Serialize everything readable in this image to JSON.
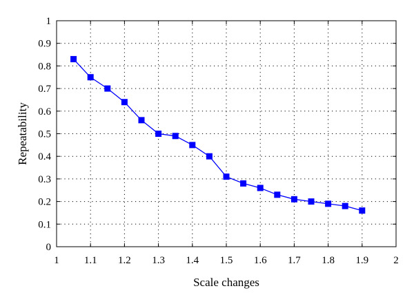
{
  "chart_data": {
    "type": "line",
    "xlabel": "Scale changes",
    "ylabel": "Repeatability",
    "xlim": [
      1,
      2
    ],
    "ylim": [
      0,
      1
    ],
    "xticks": [
      1,
      1.1,
      1.2,
      1.3,
      1.4,
      1.5,
      1.6,
      1.7,
      1.8,
      1.9,
      2
    ],
    "xtick_labels": [
      "1",
      "1.1",
      "1.2",
      "1.3",
      "1.4",
      "1.5",
      "1.6",
      "1.7",
      "1.8",
      "1.9",
      "2"
    ],
    "yticks": [
      0,
      0.1,
      0.2,
      0.3,
      0.4,
      0.5,
      0.6,
      0.7,
      0.8,
      0.9,
      1
    ],
    "ytick_labels": [
      "0",
      "0.1",
      "0.2",
      "0.3",
      "0.4",
      "0.5",
      "0.6",
      "0.7",
      "0.8",
      "0.9",
      "1"
    ],
    "grid": true,
    "grid_style": "dotted",
    "series": [
      {
        "color": "#0000ff",
        "marker": "square",
        "x": [
          1.05,
          1.1,
          1.15,
          1.2,
          1.25,
          1.3,
          1.35,
          1.4,
          1.45,
          1.5,
          1.55,
          1.6,
          1.65,
          1.7,
          1.75,
          1.8,
          1.85,
          1.9
        ],
        "y": [
          0.83,
          0.75,
          0.7,
          0.64,
          0.56,
          0.5,
          0.49,
          0.45,
          0.4,
          0.31,
          0.28,
          0.26,
          0.23,
          0.21,
          0.2,
          0.19,
          0.18,
          0.16
        ]
      }
    ]
  }
}
